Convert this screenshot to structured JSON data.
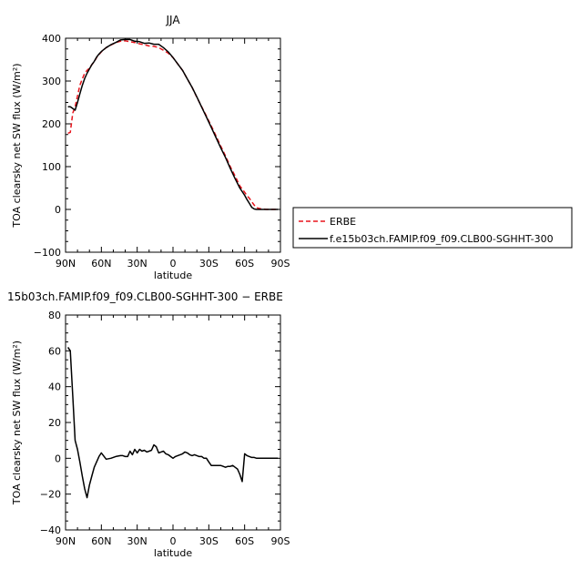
{
  "chart_data": [
    {
      "type": "line",
      "title": "JJA",
      "ylabel": "TOA clearsky net SW flux (W/m²)",
      "xlabel": "latitude",
      "ylim": [
        -100,
        400
      ],
      "yticks": [
        -100,
        0,
        100,
        200,
        300,
        400
      ],
      "ytick_labels": [
        "−100",
        "0",
        "100",
        "200",
        "300",
        "400"
      ],
      "xlim": [
        90,
        -90
      ],
      "xticks": [
        90,
        60,
        30,
        0,
        -30,
        -60,
        -90
      ],
      "xtick_labels": [
        "90N",
        "60N",
        "30N",
        "0",
        "30S",
        "60S",
        "90S"
      ],
      "legend_position": "right",
      "series": [
        {
          "name": "ERBE",
          "color": "#e8141c",
          "dash": "dashed",
          "x": [
            88,
            86,
            84,
            82,
            80,
            78,
            76,
            74,
            72,
            70,
            68,
            66,
            64,
            62,
            60,
            56,
            52,
            48,
            44,
            40,
            36,
            32,
            28,
            24,
            20,
            16,
            12,
            8,
            4,
            0,
            -4,
            -8,
            -12,
            -16,
            -20,
            -24,
            -28,
            -32,
            -36,
            -40,
            -44,
            -48,
            -52,
            -56,
            -60,
            -62,
            -64,
            -66,
            -68,
            -70,
            -74,
            -78,
            -82,
            -86,
            -88
          ],
          "y": [
            178,
            180,
            225,
            240,
            265,
            290,
            305,
            318,
            325,
            330,
            338,
            345,
            355,
            362,
            368,
            378,
            384,
            390,
            393,
            394,
            392,
            390,
            387,
            385,
            382,
            381,
            378,
            372,
            365,
            355,
            340,
            325,
            305,
            285,
            262,
            240,
            218,
            195,
            172,
            148,
            125,
            100,
            78,
            55,
            40,
            32,
            26,
            18,
            10,
            4,
            1,
            0,
            0,
            0,
            0
          ]
        },
        {
          "name": "f.e15b03ch.FAMIP.f09_f09.CLB00-SGHHT-300",
          "color": "#000000",
          "dash": "solid",
          "x": [
            88,
            86,
            84,
            82,
            80,
            78,
            76,
            74,
            72,
            70,
            68,
            66,
            64,
            62,
            60,
            56,
            52,
            48,
            44,
            40,
            36,
            32,
            28,
            24,
            20,
            16,
            12,
            8,
            4,
            0,
            -4,
            -8,
            -12,
            -16,
            -20,
            -24,
            -28,
            -32,
            -36,
            -40,
            -44,
            -48,
            -52,
            -56,
            -60,
            -62,
            -64,
            -66,
            -68,
            -70,
            -74,
            -78,
            -82,
            -86,
            -88
          ],
          "y": [
            240,
            240,
            236,
            232,
            250,
            270,
            290,
            306,
            318,
            328,
            338,
            346,
            356,
            363,
            369,
            378,
            385,
            390,
            396,
            397,
            397,
            393,
            392,
            388,
            389,
            386,
            386,
            378,
            368,
            355,
            340,
            325,
            305,
            285,
            263,
            239,
            216,
            192,
            168,
            144,
            121,
            96,
            72,
            50,
            33,
            23,
            14,
            5,
            1,
            0,
            0,
            0,
            0,
            0,
            0
          ]
        }
      ]
    },
    {
      "type": "line",
      "title": "15b03ch.FAMIP.f09_f09.CLB00-SGHHT-300 − ERBE",
      "ylabel": "TOA clearsky net SW flux (W/m²)",
      "xlabel": "latitude",
      "ylim": [
        -40,
        80
      ],
      "yticks": [
        -40,
        -20,
        0,
        20,
        40,
        60,
        80
      ],
      "ytick_labels": [
        "−40",
        "−20",
        "0",
        "20",
        "40",
        "60",
        "80"
      ],
      "xlim": [
        90,
        -90
      ],
      "xticks": [
        90,
        60,
        30,
        0,
        -30,
        -60,
        -90
      ],
      "xtick_labels": [
        "90N",
        "60N",
        "30N",
        "0",
        "30S",
        "60S",
        "90S"
      ],
      "series": [
        {
          "name": "",
          "color": "#000000",
          "dash": "solid",
          "x": [
            88,
            86,
            84,
            82,
            80,
            78,
            76,
            74,
            72,
            70,
            68,
            66,
            64,
            62,
            60,
            56,
            52,
            48,
            44,
            42,
            40,
            38,
            36,
            34,
            32,
            30,
            28,
            26,
            24,
            22,
            20,
            18,
            16,
            14,
            12,
            10,
            8,
            6,
            4,
            2,
            0,
            -2,
            -4,
            -6,
            -8,
            -10,
            -12,
            -14,
            -16,
            -18,
            -20,
            -22,
            -24,
            -26,
            -28,
            -30,
            -32,
            -34,
            -36,
            -38,
            -40,
            -42,
            -44,
            -46,
            -48,
            -50,
            -52,
            -54,
            -56,
            -58,
            -60,
            -62,
            -64,
            -66,
            -68,
            -70,
            -74,
            -78,
            -82,
            -86,
            -88
          ],
          "y": [
            62,
            60,
            35,
            10,
            5,
            -2,
            -10,
            -17,
            -22,
            -15,
            -10,
            -5,
            -2,
            1,
            3,
            -0.5,
            0,
            1,
            1.5,
            1.5,
            1,
            1,
            4,
            2,
            5,
            3,
            5,
            4,
            4.5,
            3.5,
            4,
            4.5,
            7.5,
            6.5,
            3,
            3.5,
            4,
            2.5,
            2,
            1,
            0,
            1,
            1.5,
            2,
            2.5,
            3.5,
            3,
            2,
            1.5,
            2,
            1.5,
            1,
            1,
            0,
            0,
            -2,
            -4,
            -4,
            -4,
            -4,
            -4,
            -4.5,
            -5,
            -4.5,
            -4.5,
            -4,
            -5,
            -6,
            -9,
            -13,
            2.5,
            1.5,
            1,
            0.5,
            0.5,
            0,
            0,
            0,
            0,
            0,
            0
          ]
        }
      ]
    }
  ]
}
